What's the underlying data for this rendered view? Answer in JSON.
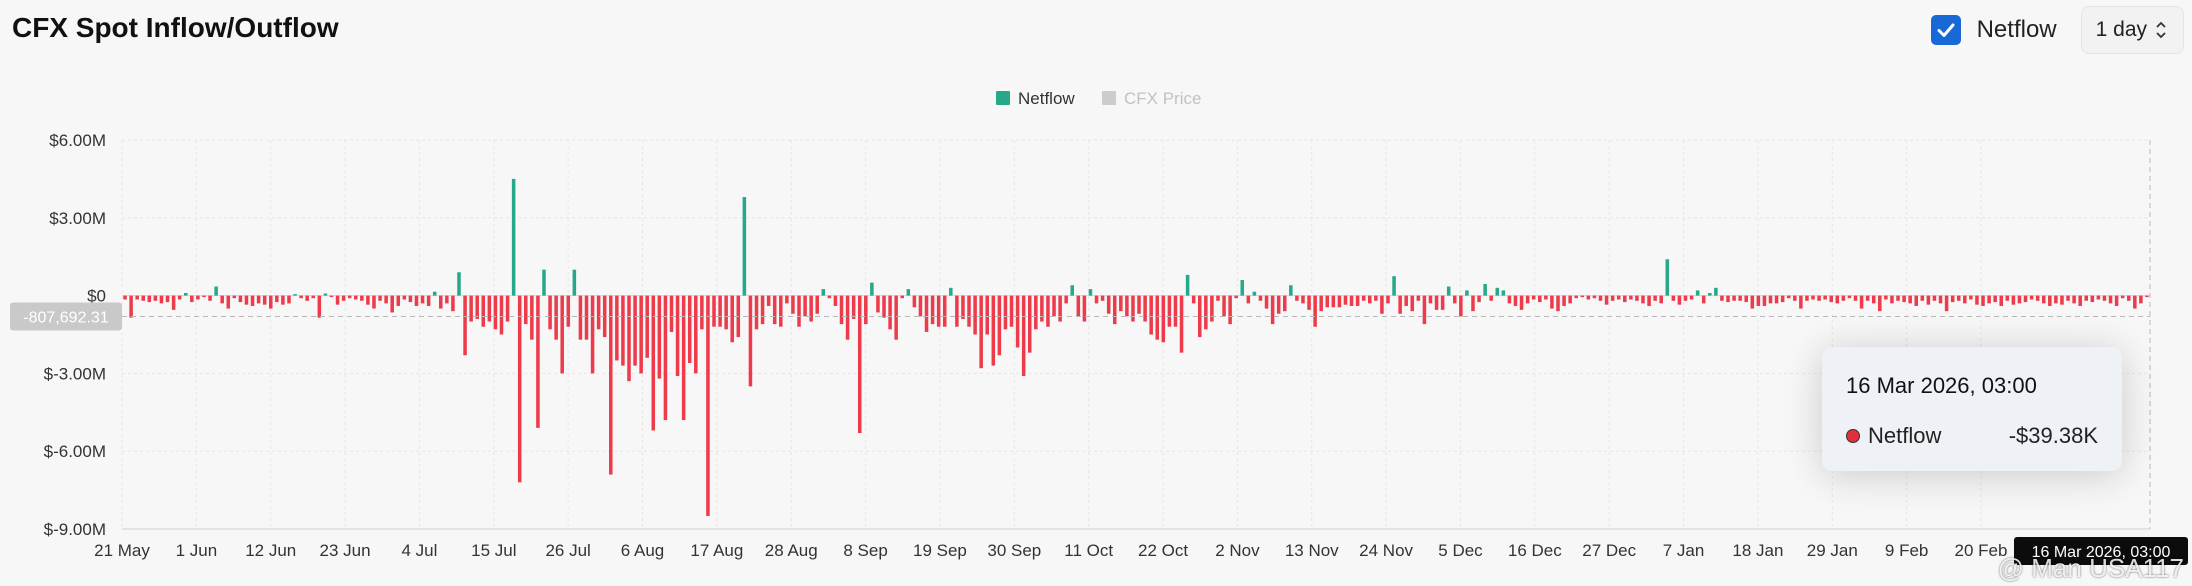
{
  "header": {
    "title": "CFX Spot Inflow/Outflow",
    "netflow_checkbox_label": "Netflow",
    "netflow_checked": true,
    "interval_value": "1 day"
  },
  "colors": {
    "inflow": "#26a889",
    "outflow": "#ed3b4c",
    "price_legend": "#cccccc",
    "accent": "#1769d6"
  },
  "tooltip": {
    "time": "16 Mar 2026, 03:00",
    "series_name": "Netflow",
    "value": "-$39.38K"
  },
  "crosshair_value_label": "-807,692.31",
  "crosshair_date_label": "16 Mar 2026, 03:00",
  "watermark": "@ Man USA117",
  "chart_data": {
    "type": "bar",
    "legend": [
      {
        "name": "Netflow",
        "color": "#26a889",
        "active": true
      },
      {
        "name": "CFX Price",
        "color": "#cccccc",
        "active": false
      }
    ],
    "legend_position": "top-center",
    "y_ticks": [
      {
        "value": 6000000,
        "label": "$6.00M"
      },
      {
        "value": 3000000,
        "label": "$3.00M"
      },
      {
        "value": 0,
        "label": "$0"
      },
      {
        "value": -3000000,
        "label": "$-3.00M"
      },
      {
        "value": -6000000,
        "label": "$-6.00M"
      },
      {
        "value": -9000000,
        "label": "$-9.00M"
      }
    ],
    "ylim": [
      -9000000,
      6000000
    ],
    "x_range_days": 300,
    "x_ticks": [
      {
        "day": 0,
        "label": "21 May"
      },
      {
        "day": 11,
        "label": "1 Jun"
      },
      {
        "day": 22,
        "label": "12 Jun"
      },
      {
        "day": 33,
        "label": "23 Jun"
      },
      {
        "day": 44,
        "label": "4 Jul"
      },
      {
        "day": 55,
        "label": "15 Jul"
      },
      {
        "day": 66,
        "label": "26 Jul"
      },
      {
        "day": 77,
        "label": "6 Aug"
      },
      {
        "day": 88,
        "label": "17 Aug"
      },
      {
        "day": 99,
        "label": "28 Aug"
      },
      {
        "day": 110,
        "label": "8 Sep"
      },
      {
        "day": 121,
        "label": "19 Sep"
      },
      {
        "day": 132,
        "label": "30 Sep"
      },
      {
        "day": 143,
        "label": "11 Oct"
      },
      {
        "day": 154,
        "label": "22 Oct"
      },
      {
        "day": 165,
        "label": "2 Nov"
      },
      {
        "day": 176,
        "label": "13 Nov"
      },
      {
        "day": 187,
        "label": "24 Nov"
      },
      {
        "day": 198,
        "label": "5 Dec"
      },
      {
        "day": 209,
        "label": "16 Dec"
      },
      {
        "day": 220,
        "label": "27 Dec"
      },
      {
        "day": 231,
        "label": "7 Jan"
      },
      {
        "day": 242,
        "label": "18 Jan"
      },
      {
        "day": 253,
        "label": "29 Jan"
      },
      {
        "day": 264,
        "label": "9 Feb"
      },
      {
        "day": 275,
        "label": "20 Feb"
      }
    ],
    "grid": true,
    "crosshair_value": -807692.31,
    "series": [
      {
        "name": "Netflow",
        "values": [
          -150000,
          -850000,
          -150000,
          -200000,
          -250000,
          -200000,
          -300000,
          -250000,
          -550000,
          -150000,
          100000,
          -250000,
          -150000,
          -50000,
          -200000,
          350000,
          -300000,
          -500000,
          -100000,
          -250000,
          -350000,
          -400000,
          -300000,
          -350000,
          -500000,
          -250000,
          -350000,
          -300000,
          50000,
          -100000,
          -200000,
          -100000,
          -850000,
          80000,
          -50000,
          -350000,
          -200000,
          -100000,
          -150000,
          -200000,
          -350000,
          -500000,
          -200000,
          -300000,
          -650000,
          -400000,
          -150000,
          -250000,
          -400000,
          -300000,
          -400000,
          150000,
          -500000,
          -300000,
          -600000,
          900000,
          -2300000,
          -1000000,
          -900000,
          -1200000,
          -1000000,
          -1300000,
          -1500000,
          -1000000,
          4500000,
          -7200000,
          -1100000,
          -1700000,
          -5100000,
          1000000,
          -1300000,
          -1700000,
          -3000000,
          -1200000,
          1000000,
          -1700000,
          -1700000,
          -3000000,
          -1300000,
          -1600000,
          -6900000,
          -2500000,
          -2700000,
          -3300000,
          -2700000,
          -3000000,
          -2400000,
          -5200000,
          -3200000,
          -4800000,
          -1400000,
          -3100000,
          -4800000,
          -2600000,
          -3000000,
          -1300000,
          -8500000,
          -1200000,
          -1200000,
          -1300000,
          -1800000,
          -1600000,
          3800000,
          -3500000,
          -1300000,
          -1100000,
          -400000,
          -1100000,
          -1200000,
          -300000,
          -700000,
          -1200000,
          -800000,
          -1000000,
          -700000,
          250000,
          -100000,
          -400000,
          -1100000,
          -1700000,
          -900000,
          -5300000,
          -1100000,
          500000,
          -650000,
          -850000,
          -1300000,
          -1700000,
          -100000,
          250000,
          -450000,
          -800000,
          -1400000,
          -1100000,
          -1200000,
          -1200000,
          300000,
          -1200000,
          -900000,
          -1200000,
          -1500000,
          -2800000,
          -1500000,
          -2700000,
          -2300000,
          -1300000,
          -1200000,
          -2000000,
          -3100000,
          -2200000,
          -1300000,
          -1000000,
          -1200000,
          -800000,
          -1000000,
          -300000,
          400000,
          -800000,
          -1000000,
          250000,
          -300000,
          -200000,
          -700000,
          -1100000,
          -600000,
          -800000,
          -1000000,
          -700000,
          -1000000,
          -1500000,
          -1700000,
          -1800000,
          -1200000,
          -1200000,
          -2200000,
          800000,
          -300000,
          -1600000,
          -1300000,
          -1000000,
          -200000,
          -800000,
          -1100000,
          -100000,
          600000,
          -300000,
          150000,
          -200000,
          -500000,
          -1100000,
          -700000,
          -600000,
          400000,
          -200000,
          -300000,
          -550000,
          -1200000,
          -600000,
          -450000,
          -450000,
          -450000,
          -350000,
          -400000,
          -400000,
          -200000,
          -300000,
          -200000,
          -700000,
          -300000,
          750000,
          -700000,
          -400000,
          -600000,
          -200000,
          -1100000,
          -300000,
          -550000,
          -550000,
          350000,
          -300000,
          -800000,
          200000,
          -600000,
          -250000,
          450000,
          -200000,
          300000,
          200000,
          -300000,
          -400000,
          -550000,
          -300000,
          -150000,
          -250000,
          -150000,
          -500000,
          -600000,
          -400000,
          -300000,
          -100000,
          -50000,
          -150000,
          -100000,
          -200000,
          -350000,
          -200000,
          -150000,
          -250000,
          -150000,
          -200000,
          -300000,
          -400000,
          -200000,
          -300000,
          1400000,
          -200000,
          -350000,
          -200000,
          -150000,
          200000,
          -300000,
          100000,
          300000,
          -200000,
          -250000,
          -200000,
          -200000,
          -250000,
          -500000,
          -400000,
          -400000,
          -300000,
          -300000,
          -250000,
          -100000,
          -200000,
          -500000,
          -200000,
          -150000,
          -200000,
          -150000,
          -250000,
          -300000,
          -200000,
          -100000,
          -200000,
          -500000,
          -200000,
          -300000,
          -600000,
          -150000,
          -300000,
          -200000,
          -250000,
          -300000,
          -400000,
          -200000,
          -350000,
          -200000,
          -300000,
          -600000,
          -250000,
          -200000,
          -300000,
          -150000,
          -350000,
          -400000,
          -300000,
          -250000,
          -400000,
          -200000,
          -350000,
          -300000,
          -250000,
          -150000,
          -200000,
          -300000,
          -400000,
          -300000,
          -350000,
          -200000,
          -300000,
          -400000,
          -200000,
          -250000,
          -150000,
          -200000,
          -300000,
          -400000,
          -100000,
          -200000,
          -500000,
          -300000,
          -40000
        ]
      }
    ]
  }
}
